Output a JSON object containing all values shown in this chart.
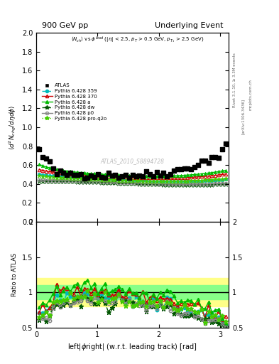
{
  "title_left": "900 GeV pp",
  "title_right": "Underlying Event",
  "ylabel_main": "$\\langle d^2 N_{chg}/d\\eta d\\phi \\rangle$",
  "ylabel_ratio": "Ratio to ATLAS",
  "xlabel": "left|$\\phi$right| (w.r.t. leading track) [rad]",
  "annotation_main": "$\\langle N_{ch} \\rangle$ vs $\\phi^{lead}$ (|$\\eta$| < 2.5, $p_T$ > 0.5 GeV, $p_{T_1}$ > 2.5 GeV)",
  "watermark": "ATLAS_2010_S8894728",
  "rivet_label": "Rivet 3.1.10, ≥ 3.3M events",
  "arxiv_label": "[arXiv:1306.3436]",
  "mcplots_label": "mcplots.cern.ch",
  "ylim_main": [
    0.0,
    2.0
  ],
  "ylim_ratio": [
    0.5,
    2.0
  ],
  "xlim": [
    0.0,
    3.14159
  ],
  "green_band_half": 0.1,
  "yellow_band_half": 0.2,
  "atlas_color": "#000000",
  "p359_color": "#00BBBB",
  "p370_color": "#CC0000",
  "pa_color": "#00BB00",
  "pdw_color": "#005500",
  "pp0_color": "#888888",
  "pprq_color": "#44CC00"
}
